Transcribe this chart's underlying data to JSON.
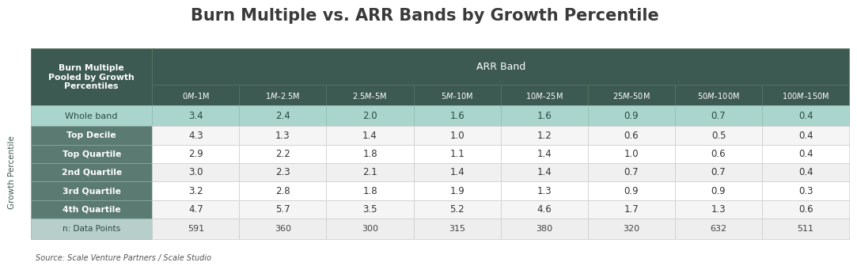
{
  "title": "Burn Multiple vs. ARR Bands by Growth Percentile",
  "source": "Source: Scale Venture Partners / Scale Studio",
  "header_top_left": "Burn Multiple\nPooled by Growth\nPercentiles",
  "arr_band_label": "ARR Band",
  "arr_bands": [
    "$0M – $1M",
    "$1M – $2.5M",
    "$2.5M – $5M",
    "$5M – $10M",
    "$10M – $25M",
    "$25M – $50M",
    "$50M – $100M",
    "$100M – $150M"
  ],
  "whole_band_label": "Whole band",
  "whole_band_values": [
    "3.4",
    "2.4",
    "2.0",
    "1.6",
    "1.6",
    "0.9",
    "0.7",
    "0.4"
  ],
  "growth_label": "Growth Percentile",
  "row_labels": [
    "Top Decile",
    "Top Quartile",
    "2nd Quartile",
    "3rd Quartile",
    "4th Quartile"
  ],
  "row_values": [
    [
      "4.3",
      "1.3",
      "1.4",
      "1.0",
      "1.2",
      "0.6",
      "0.5",
      "0.4"
    ],
    [
      "2.9",
      "2.2",
      "1.8",
      "1.1",
      "1.4",
      "1.0",
      "0.6",
      "0.4"
    ],
    [
      "3.0",
      "2.3",
      "2.1",
      "1.4",
      "1.4",
      "0.7",
      "0.7",
      "0.4"
    ],
    [
      "3.2",
      "2.8",
      "1.8",
      "1.9",
      "1.3",
      "0.9",
      "0.9",
      "0.3"
    ],
    [
      "4.7",
      "5.7",
      "3.5",
      "5.2",
      "4.6",
      "1.7",
      "1.3",
      "0.6"
    ]
  ],
  "data_points_label": "n: Data Points",
  "data_points_values": [
    "591",
    "360",
    "300",
    "315",
    "380",
    "320",
    "632",
    "511"
  ],
  "color_dark": "#3d5a52",
  "color_whole_band": "#aad5cc",
  "color_row_label_bg": "#5a7a72",
  "color_row_label_text": "#ffffff",
  "color_data_odd": "#f5f5f5",
  "color_data_even": "#ffffff",
  "color_data_points_label_bg": "#b8ceca",
  "color_data_points_bg": "#eeeeee",
  "color_border": "#cccccc",
  "color_title": "#3a3a3a",
  "color_top_left_bg": "#3d5a52",
  "color_top_left_text": "#ffffff",
  "color_arr_band_bg": "#3d5a52",
  "color_arr_band_text": "#ffffff",
  "color_growth_label": "#3d5a52"
}
